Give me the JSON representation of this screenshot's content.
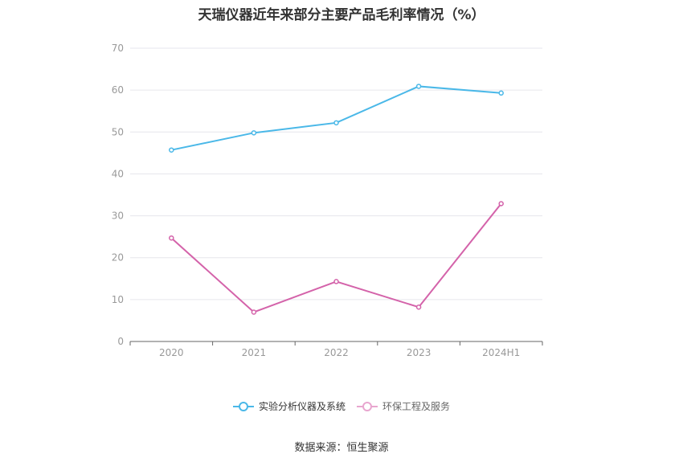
{
  "chart_data": {
    "type": "line",
    "title": "天瑞仪器近年来部分主要产品毛利率情况（%）",
    "categories": [
      "2020",
      "2021",
      "2022",
      "2023",
      "2024H1"
    ],
    "ylim": [
      0,
      70
    ],
    "yticks": [
      0,
      10,
      20,
      30,
      40,
      50,
      60,
      70
    ],
    "grid": true,
    "legend_position": "bottom",
    "series": [
      {
        "name": "实验分析仪器及系统",
        "color": "#4ab8e8",
        "values": [
          45.7,
          49.8,
          52.2,
          60.9,
          59.3
        ]
      },
      {
        "name": "环保工程及服务",
        "color": "#d463aa",
        "values": [
          24.7,
          7.0,
          14.3,
          8.2,
          32.9
        ]
      }
    ]
  },
  "source": "数据来源：恒生聚源"
}
